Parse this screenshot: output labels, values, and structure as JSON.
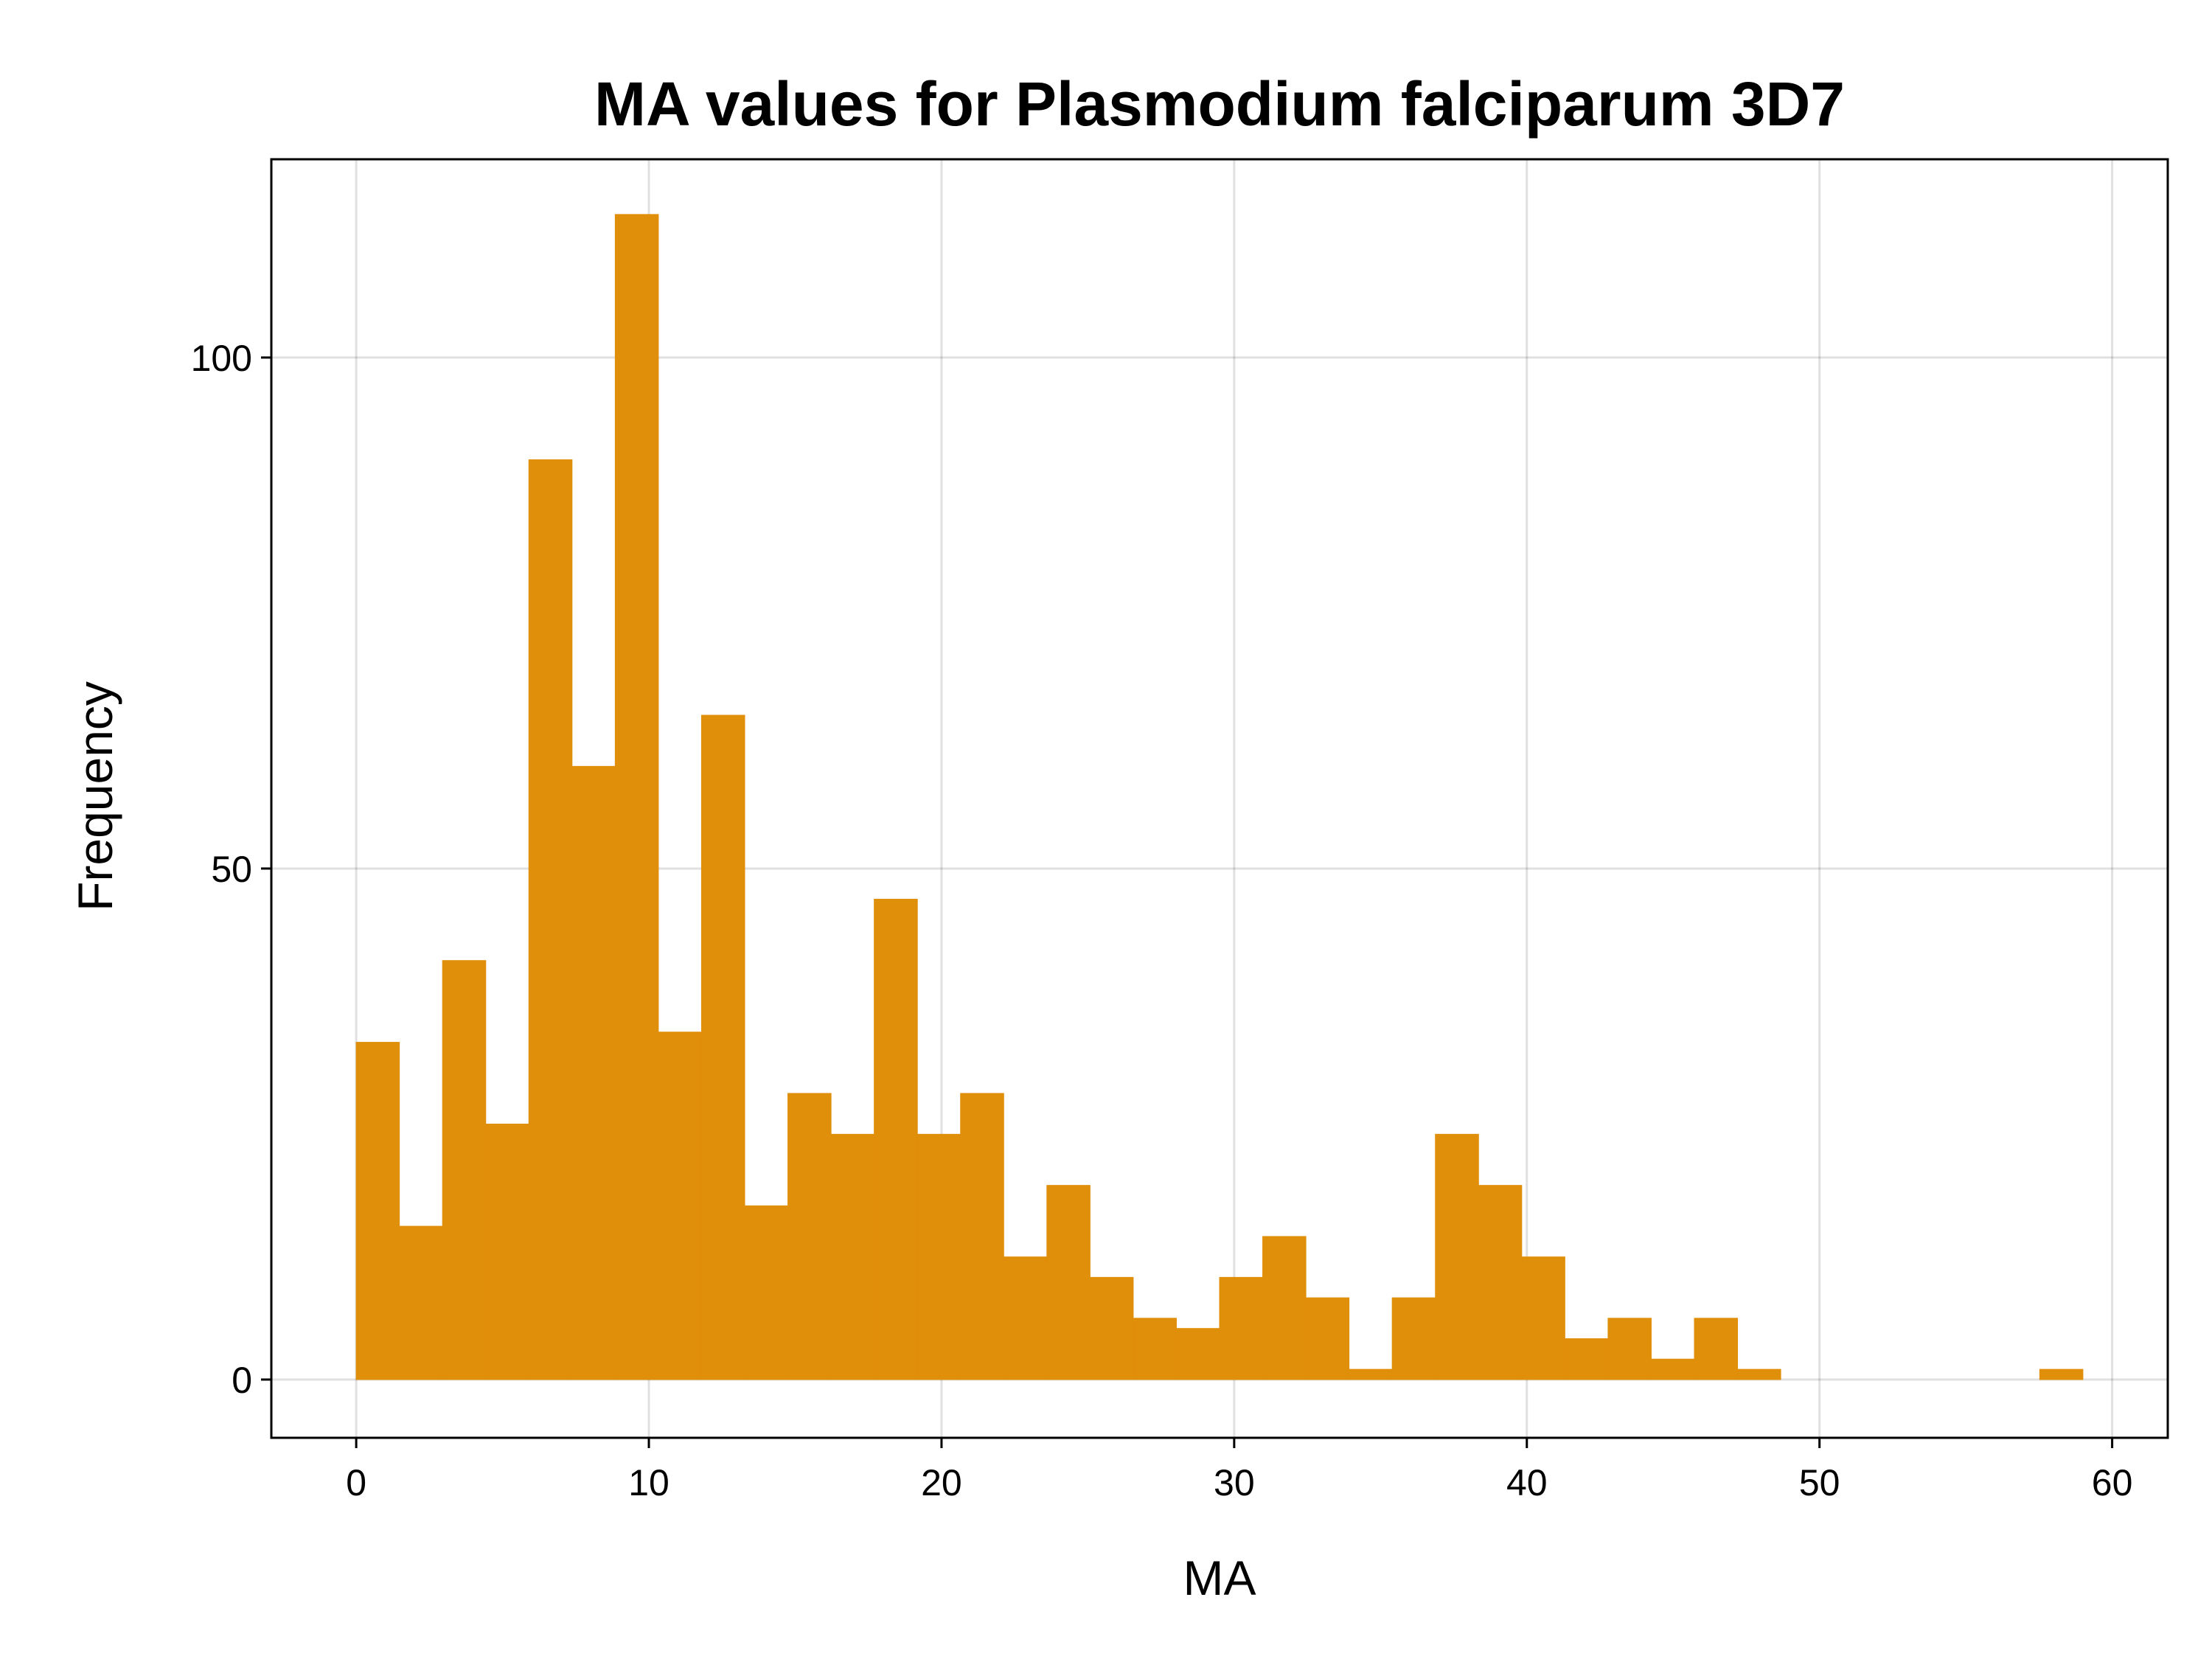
{
  "chart_data": {
    "type": "bar",
    "title": "MA values for Plasmodium falciparum 3D7",
    "xlabel": "MA",
    "ylabel": "Frequency",
    "xlim": [
      -2.9,
      61.9
    ],
    "ylim": [
      -5.7,
      119.4
    ],
    "xticks": [
      0,
      10,
      20,
      30,
      40,
      50,
      60
    ],
    "yticks": [
      0,
      50,
      100
    ],
    "grid": true,
    "legend": "none",
    "bar_color": "#E08F0B",
    "bin_width": 1.475,
    "bin_start": 0,
    "values": [
      33,
      15,
      41,
      25,
      90,
      60,
      114,
      34,
      65,
      17,
      28,
      24,
      47,
      24,
      28,
      12,
      19,
      10,
      6,
      5,
      10,
      14,
      8,
      1,
      8,
      24,
      19,
      12,
      4,
      6,
      2,
      6,
      1,
      0,
      0,
      0,
      0,
      0,
      0,
      1
    ]
  }
}
